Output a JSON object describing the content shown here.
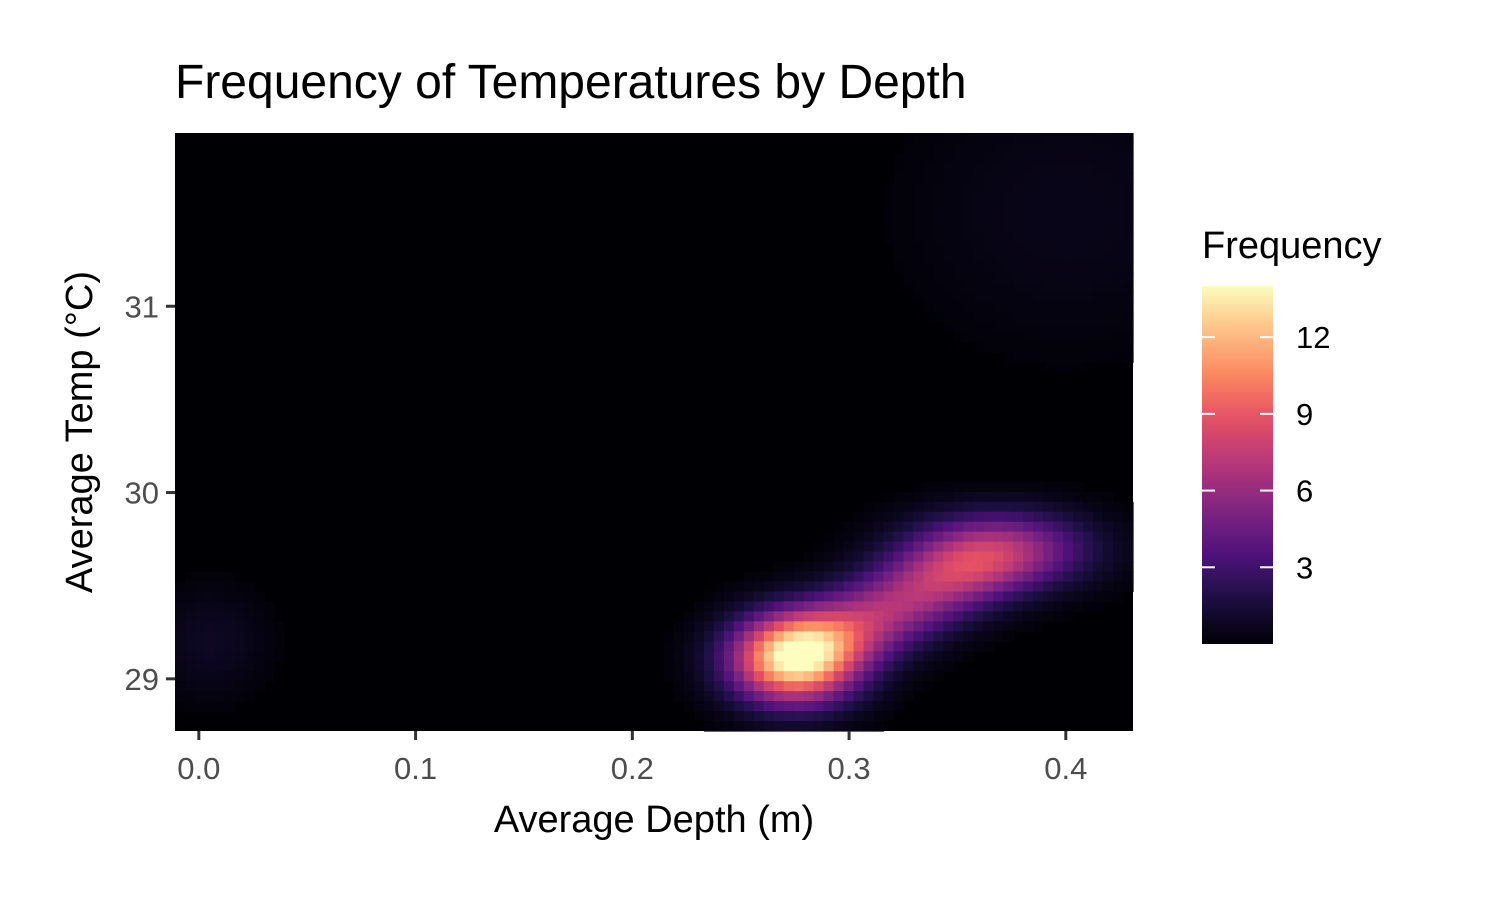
{
  "chart_data": {
    "type": "heatmap",
    "title": "Frequency of Temperatures by Depth",
    "xlabel": "Average Depth (m)",
    "ylabel": "Average Temp (°C)",
    "xlim": [
      -0.011,
      0.431
    ],
    "ylim": [
      28.72,
      31.93
    ],
    "x_ticks": [
      {
        "value": 0.0,
        "label": "0.0"
      },
      {
        "value": 0.1,
        "label": "0.1"
      },
      {
        "value": 0.2,
        "label": "0.2"
      },
      {
        "value": 0.3,
        "label": "0.3"
      },
      {
        "value": 0.4,
        "label": "0.4"
      }
    ],
    "y_ticks": [
      {
        "value": 29,
        "label": "29"
      },
      {
        "value": 30,
        "label": "30"
      },
      {
        "value": 31,
        "label": "31"
      }
    ],
    "density_peaks": [
      {
        "x": 0.275,
        "y": 29.1,
        "frequency": 13.5
      },
      {
        "x": 0.37,
        "y": 29.7,
        "frequency": 6.0
      },
      {
        "x": 0.005,
        "y": 29.2,
        "frequency": 0.9
      },
      {
        "x": 0.4,
        "y": 31.5,
        "frequency": 0.6
      }
    ],
    "legend": {
      "title": "Frequency",
      "min": 0,
      "max": 14,
      "ticks": [
        {
          "value": 3,
          "label": "3"
        },
        {
          "value": 6,
          "label": "6"
        },
        {
          "value": 9,
          "label": "9"
        },
        {
          "value": 12,
          "label": "12"
        }
      ],
      "position": "right",
      "palette": "magma"
    }
  }
}
